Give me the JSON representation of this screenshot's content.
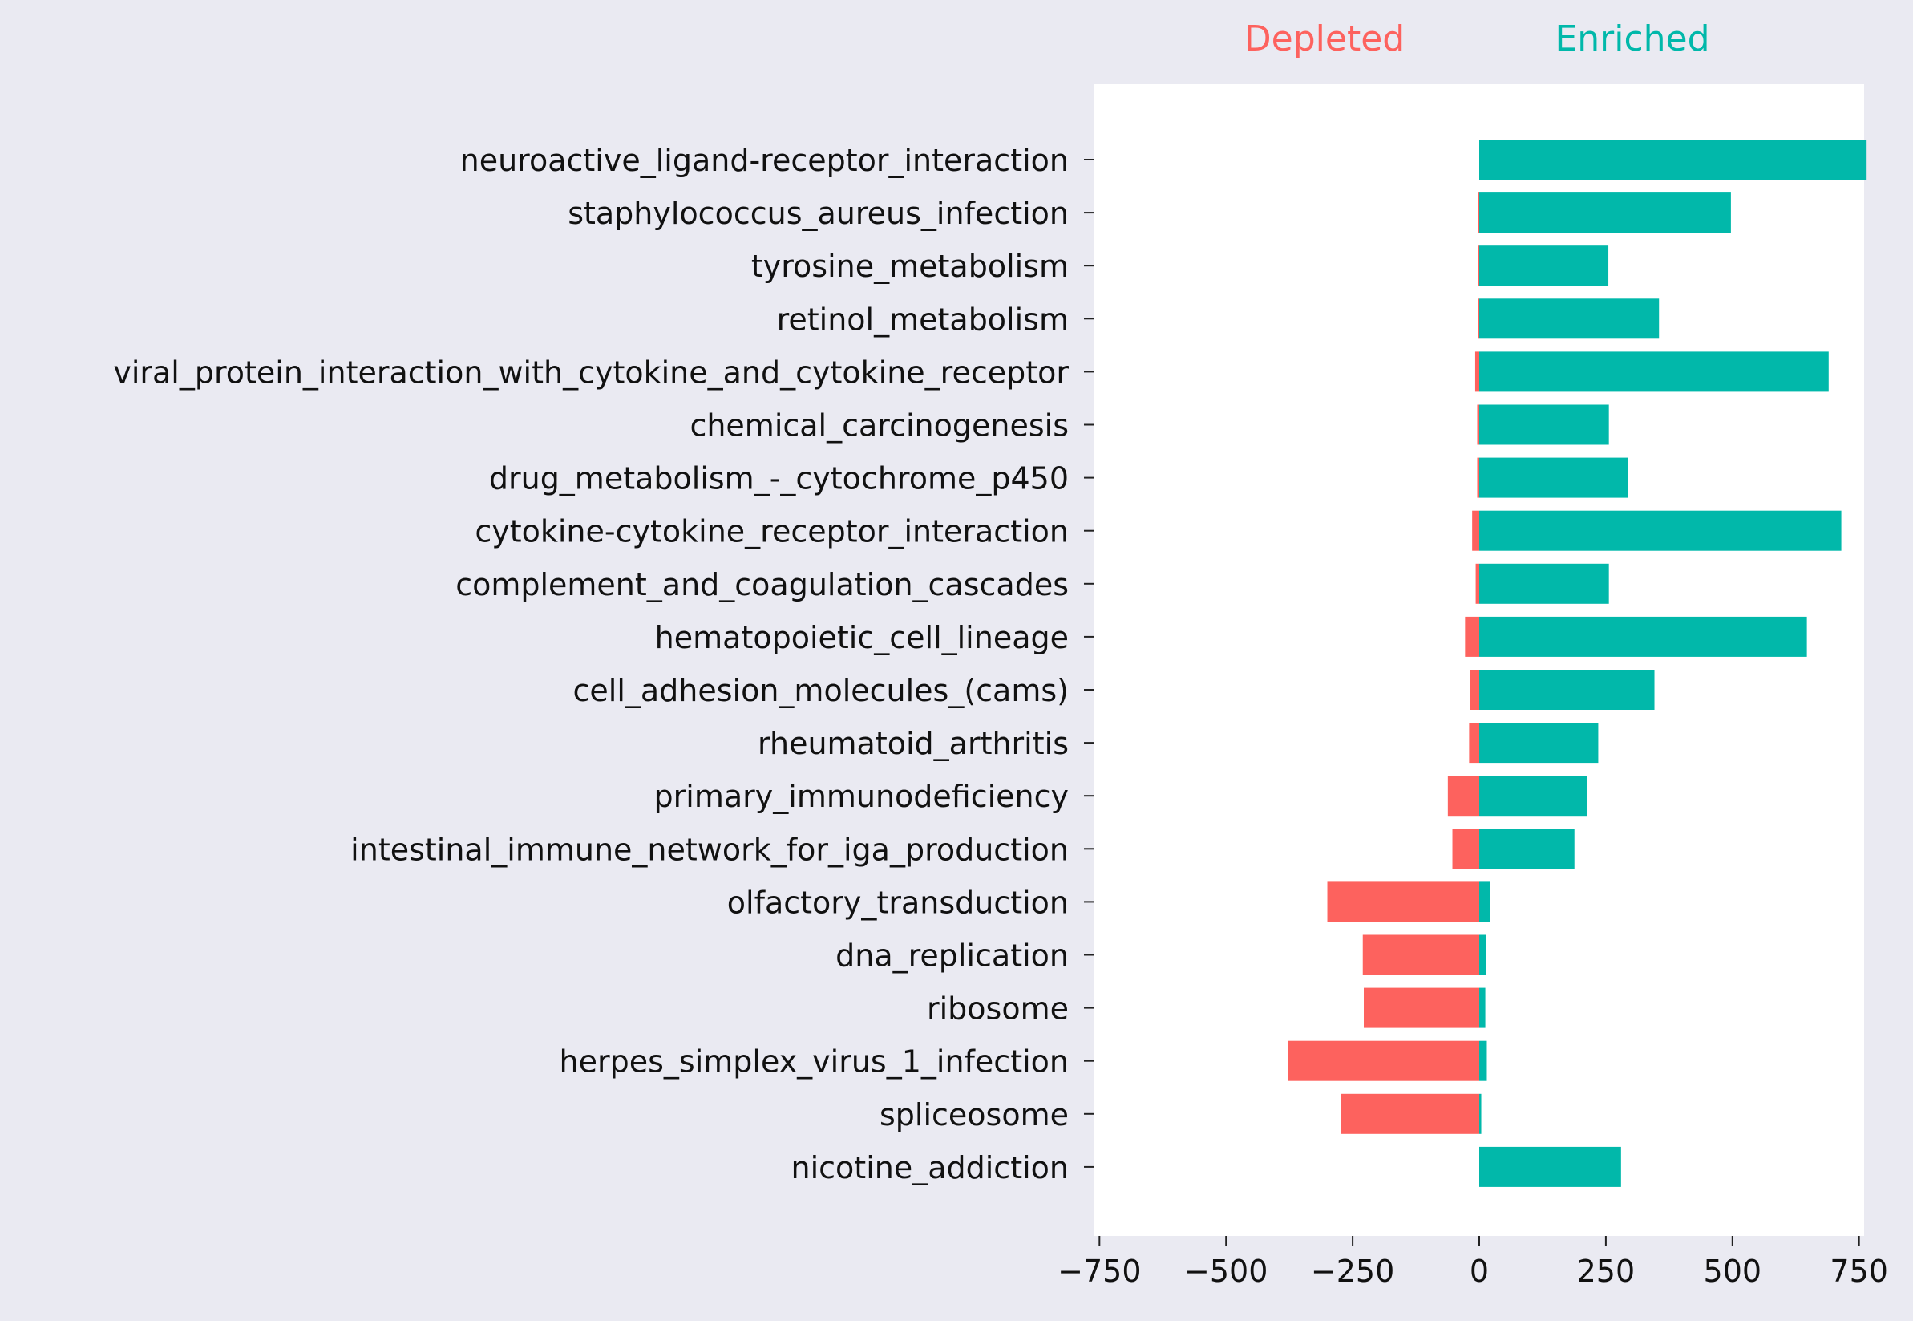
{
  "chart_data": {
    "type": "bar",
    "orientation": "horizontal",
    "stacked": "diverging",
    "legend_labels": {
      "depleted": "Depleted",
      "enriched": "Enriched"
    },
    "categories": [
      "neuroactive_ligand-receptor_interaction",
      "staphylococcus_aureus_infection",
      "tyrosine_metabolism",
      "retinol_metabolism",
      "viral_protein_interaction_with_cytokine_and_cytokine_receptor",
      "chemical_carcinogenesis",
      "drug_metabolism_-_cytochrome_p450",
      "cytokine-cytokine_receptor_interaction",
      "complement_and_coagulation_cascades",
      "hematopoietic_cell_lineage",
      "cell_adhesion_molecules_(cams)",
      "rheumatoid_arthritis",
      "primary_immunodeficiency",
      "intestinal_immune_network_for_iga_production",
      "olfactory_transduction",
      "dna_replication",
      "ribosome",
      "herpes_simplex_virus_1_infection",
      "spliceosome",
      "nicotine_addiction"
    ],
    "series": [
      {
        "name": "Depleted",
        "values": [
          0,
          -3,
          -2,
          -3,
          -8,
          -4,
          -4,
          -14,
          -7,
          -28,
          -18,
          -20,
          -62,
          -53,
          -300,
          -230,
          -228,
          -378,
          -273,
          0
        ]
      },
      {
        "name": "Enriched",
        "values": [
          765,
          497,
          255,
          355,
          690,
          256,
          293,
          715,
          256,
          647,
          346,
          235,
          213,
          188,
          22,
          13,
          12,
          15,
          4,
          280
        ]
      }
    ],
    "xlim": [
      -760,
      760
    ],
    "xticks": [
      -750,
      -500,
      -250,
      0,
      250,
      500,
      750
    ],
    "xtick_labels": [
      "−750",
      "−500",
      "−250",
      "0",
      "250",
      "500",
      "750"
    ],
    "grid": false,
    "colors": {
      "depleted": "#fd625e",
      "enriched": "#01b8aa",
      "figure_bg": "#eaeaf2",
      "axes_bg": "#ffffff",
      "text": "#111111"
    }
  }
}
